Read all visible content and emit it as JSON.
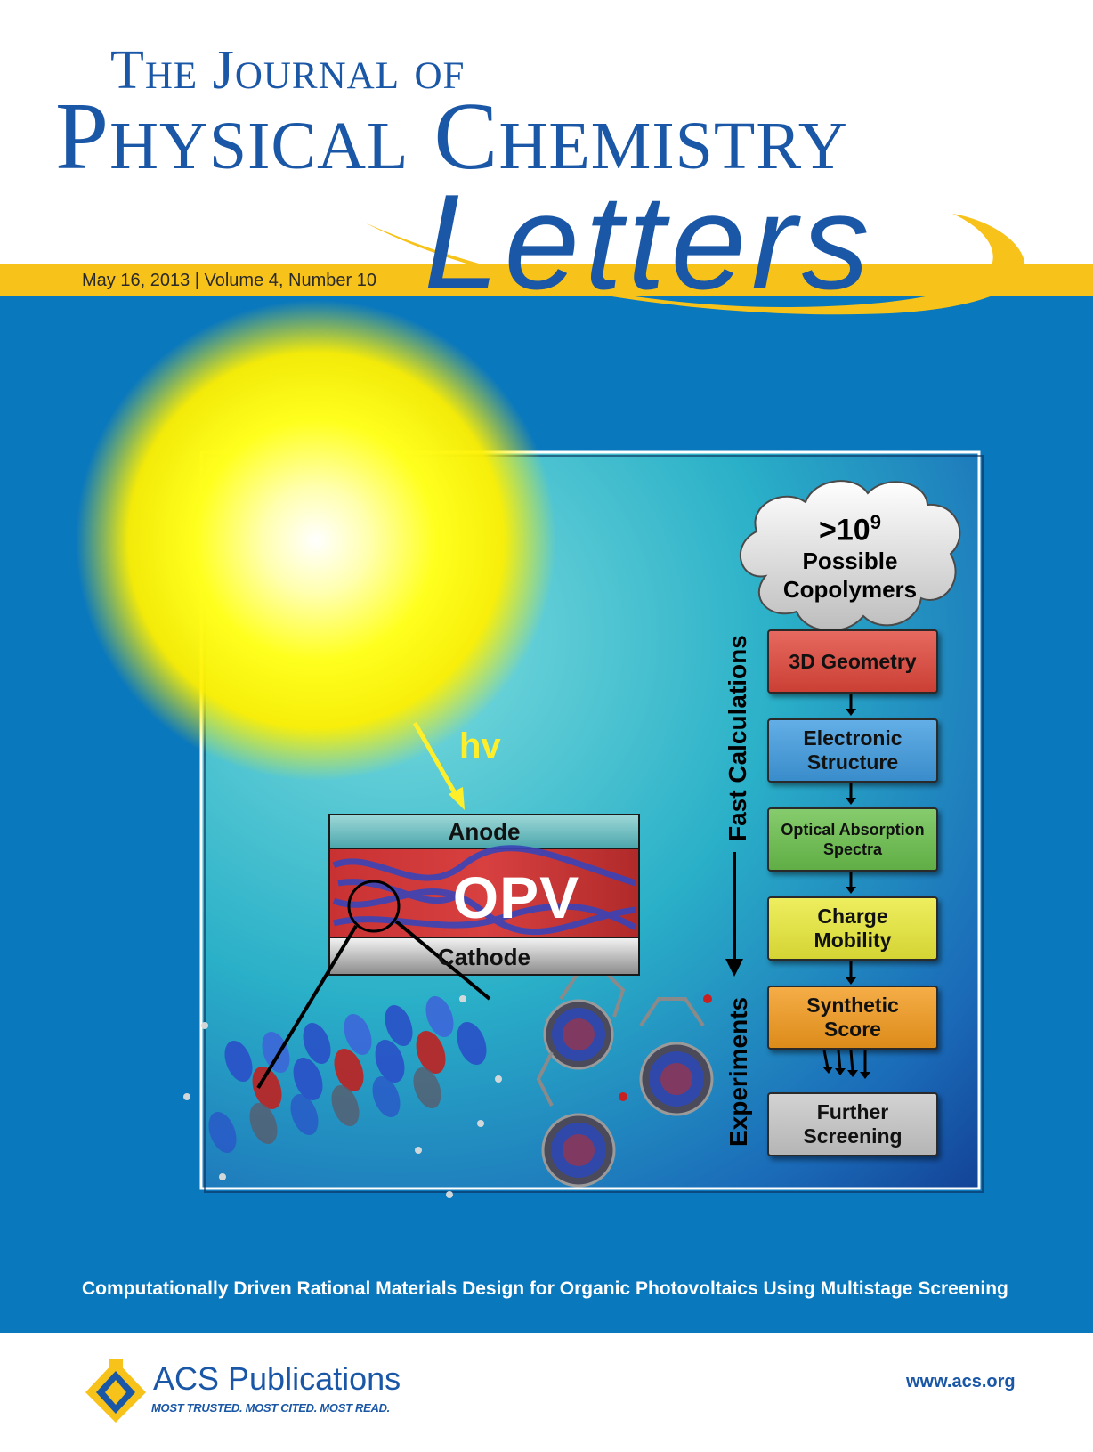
{
  "masthead": {
    "title_line1": "The Journal of",
    "title_line2": "Physical Chemistry",
    "title_line3": "Letters",
    "issue_info": "May 16, 2013 | Volume 4, Number 10"
  },
  "cover_art": {
    "photon_label": "hv",
    "device": {
      "anode": "Anode",
      "active_layer": "OPV",
      "cathode": "Cathode"
    },
    "screening": {
      "cloud_count": ">10",
      "cloud_exponent": "9",
      "cloud_line2": "Possible",
      "cloud_line3": "Copolymers",
      "side_label_top": "Fast Calculations",
      "side_label_bottom": "Experiments",
      "stages": [
        {
          "line1": "3D Geometry",
          "line2": "",
          "color": "#e0463a"
        },
        {
          "line1": "Electronic",
          "line2": "Structure",
          "color": "#3f9be0"
        },
        {
          "line1": "Optical Absorption",
          "line2": "Spectra",
          "color": "#6ac04c"
        },
        {
          "line1": "Charge",
          "line2": "Mobility",
          "color": "#eaea3a"
        },
        {
          "line1": "Synthetic",
          "line2": "Score",
          "color": "#f39a1c"
        },
        {
          "line1": "Further",
          "line2": "Screening",
          "color": "#c8c8c8"
        }
      ]
    }
  },
  "article_title": "Computationally Driven Rational Materials Design for Organic Photovoltaics Using Multistage Screening",
  "footer": {
    "publisher": "ACS Publications",
    "tagline": "MOST TRUSTED. MOST CITED. MOST READ.",
    "url": "www.acs.org"
  },
  "colors": {
    "brand_blue": "#1a57a6",
    "band_yellow": "#f7c21a",
    "cover_blue": "#0a78bd"
  }
}
